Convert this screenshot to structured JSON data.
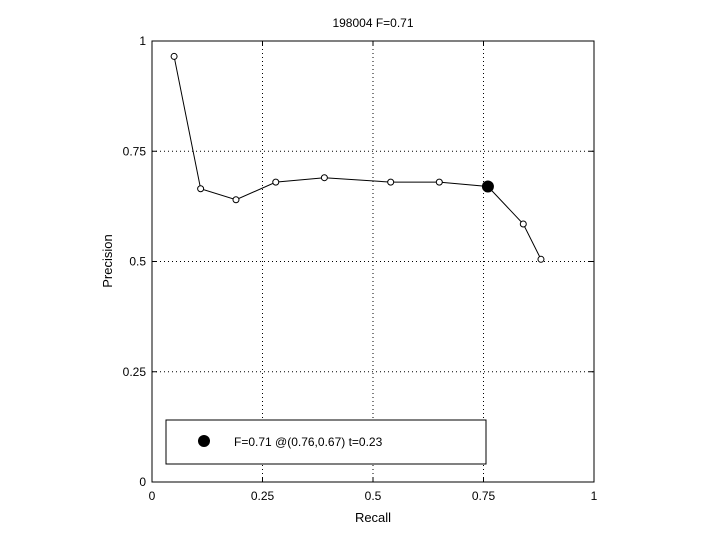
{
  "chart_data": {
    "type": "line",
    "title": "198004 F=0.71",
    "xlabel": "Recall",
    "ylabel": "Precision",
    "xlim": [
      0,
      1
    ],
    "ylim": [
      0,
      1
    ],
    "grid": true,
    "xticks": [
      0,
      0.25,
      0.5,
      0.75,
      1
    ],
    "xtick_labels": [
      "0",
      "0.25",
      "0.5",
      "0.75",
      "1"
    ],
    "yticks": [
      0,
      0.25,
      0.5,
      0.75,
      1
    ],
    "ytick_labels": [
      "0",
      "0.25",
      "0.5",
      "0.75",
      "1"
    ],
    "series": [
      {
        "x": [
          0.05,
          0.11,
          0.19,
          0.28,
          0.39,
          0.54,
          0.65,
          0.76,
          0.84,
          0.88
        ],
        "y": [
          0.965,
          0.665,
          0.64,
          0.68,
          0.69,
          0.68,
          0.68,
          0.67,
          0.585,
          0.505
        ],
        "marker": "open-circle",
        "color": "#000000"
      }
    ],
    "best_point": {
      "x": 0.76,
      "y": 0.67,
      "marker": "filled-circle",
      "color": "#000000"
    },
    "legend": {
      "entries": [
        "F=0.71 @(0.76,0.67) t=0.23"
      ],
      "position": "bottom-left"
    }
  }
}
